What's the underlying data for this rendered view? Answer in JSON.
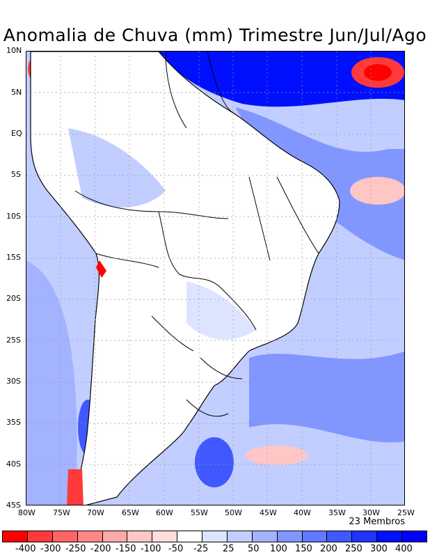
{
  "title": "Anomalia de Chuva (mm) Trimestre Jun/Jul/Ago",
  "map": {
    "lat_labels": [
      "10N",
      "5N",
      "EQ",
      "5S",
      "10S",
      "15S",
      "20S",
      "25S",
      "30S",
      "35S",
      "40S",
      "45S"
    ],
    "lon_labels": [
      "80W",
      "75W",
      "70W",
      "65W",
      "60W",
      "55W",
      "50W",
      "45W",
      "40W",
      "35W",
      "30W",
      "25W"
    ],
    "members_note": "23 Membros"
  },
  "legend": {
    "labels": [
      "-400",
      "-300",
      "-250",
      "-200",
      "-150",
      "-100",
      "-50",
      "-25",
      "25",
      "50",
      "100",
      "150",
      "200",
      "250",
      "300",
      "400"
    ],
    "colors": [
      "#ff0000",
      "#ff3a3a",
      "#ff6464",
      "#ff8787",
      "#ffa8a8",
      "#ffc6c6",
      "#ffdcdc",
      "#ffffff",
      "#dde4ff",
      "#c2ceff",
      "#a3b3ff",
      "#8296ff",
      "#6178ff",
      "#4058ff",
      "#1f35ff",
      "#0010ff",
      "#0000ff"
    ]
  }
}
